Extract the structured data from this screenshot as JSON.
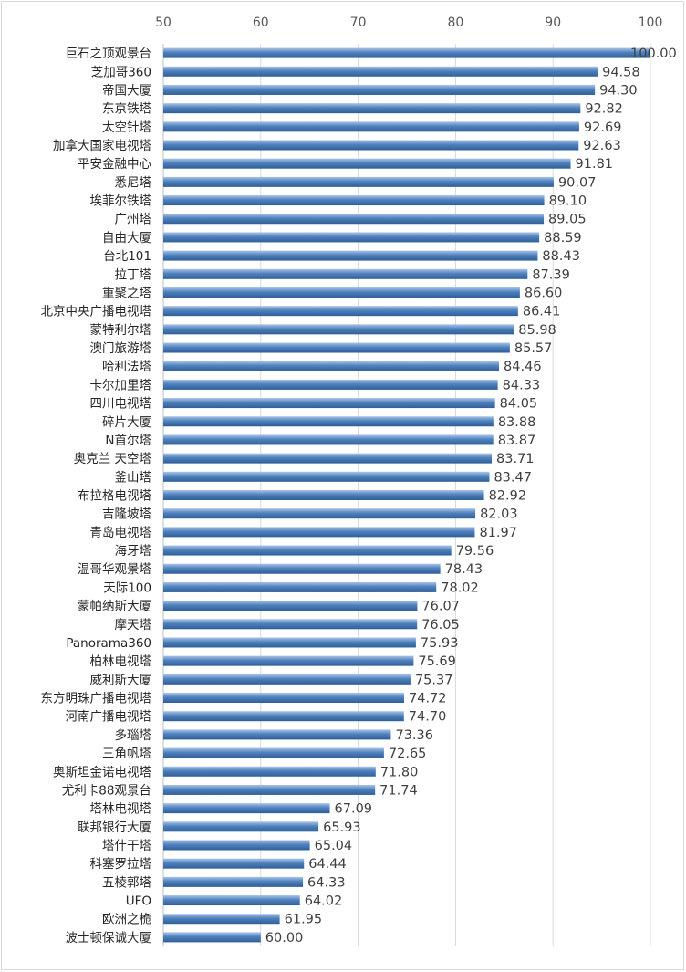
{
  "chart_data": {
    "type": "bar",
    "orientation": "horizontal",
    "xlim": [
      50,
      100
    ],
    "xticks": [
      50,
      60,
      70,
      80,
      90,
      100
    ],
    "x_axis_position": "top",
    "grid": true,
    "bar_color": "#4f81bd",
    "categories": [
      "巨石之顶观景台",
      "芝加哥360",
      "帝国大厦",
      "东京铁塔",
      "太空针塔",
      "加拿大国家电视塔",
      "平安金融中心",
      "悉尼塔",
      "埃菲尔铁塔",
      "广州塔",
      "自由大厦",
      "台北101",
      "拉丁塔",
      "重聚之塔",
      "北京中央广播电视塔",
      "蒙特利尔塔",
      "澳门旅游塔",
      "哈利法塔",
      "卡尔加里塔",
      "四川电视塔",
      "碎片大厦",
      "N首尔塔",
      "奥克兰 天空塔",
      "釜山塔",
      "布拉格电视塔",
      "吉隆坡塔",
      "青岛电视塔",
      "海牙塔",
      "温哥华观景塔",
      "天际100",
      "蒙帕纳斯大厦",
      "摩天塔",
      "Panorama360",
      "柏林电视塔",
      "威利斯大厦",
      "东方明珠广播电视塔",
      "河南广播电视塔",
      "多瑙塔",
      "三角帆塔",
      "奥斯坦金诺电视塔",
      "尤利卡88观景台",
      "塔林电视塔",
      "联邦银行大厦",
      "塔什干塔",
      "科塞罗拉塔",
      "五棱郭塔",
      "UFO",
      "欧洲之桅",
      "波士顿保诚大厦"
    ],
    "values": [
      100.0,
      94.58,
      94.3,
      92.82,
      92.69,
      92.63,
      91.81,
      90.07,
      89.1,
      89.05,
      88.59,
      88.43,
      87.39,
      86.6,
      86.41,
      85.98,
      85.57,
      84.46,
      84.33,
      84.05,
      83.88,
      83.87,
      83.71,
      83.47,
      82.92,
      82.03,
      81.97,
      79.56,
      78.43,
      78.02,
      76.07,
      76.05,
      75.93,
      75.69,
      75.37,
      74.72,
      74.7,
      73.36,
      72.65,
      71.8,
      71.74,
      67.09,
      65.93,
      65.04,
      64.44,
      64.33,
      64.02,
      61.95,
      60.0
    ],
    "value_labels": [
      "100.00",
      "94.58",
      "94.30",
      "92.82",
      "92.69",
      "92.63",
      "91.81",
      "90.07",
      "89.10",
      "89.05",
      "88.59",
      "88.43",
      "87.39",
      "86.60",
      "86.41",
      "85.98",
      "85.57",
      "84.46",
      "84.33",
      "84.05",
      "83.88",
      "83.87",
      "83.71",
      "83.47",
      "82.92",
      "82.03",
      "81.97",
      "79.56",
      "78.43",
      "78.02",
      "76.07",
      "76.05",
      "75.93",
      "75.69",
      "75.37",
      "74.72",
      "74.70",
      "73.36",
      "72.65",
      "71.80",
      "71.74",
      "67.09",
      "65.93",
      "65.04",
      "64.44",
      "64.33",
      "64.02",
      "61.95",
      "60.00"
    ]
  }
}
